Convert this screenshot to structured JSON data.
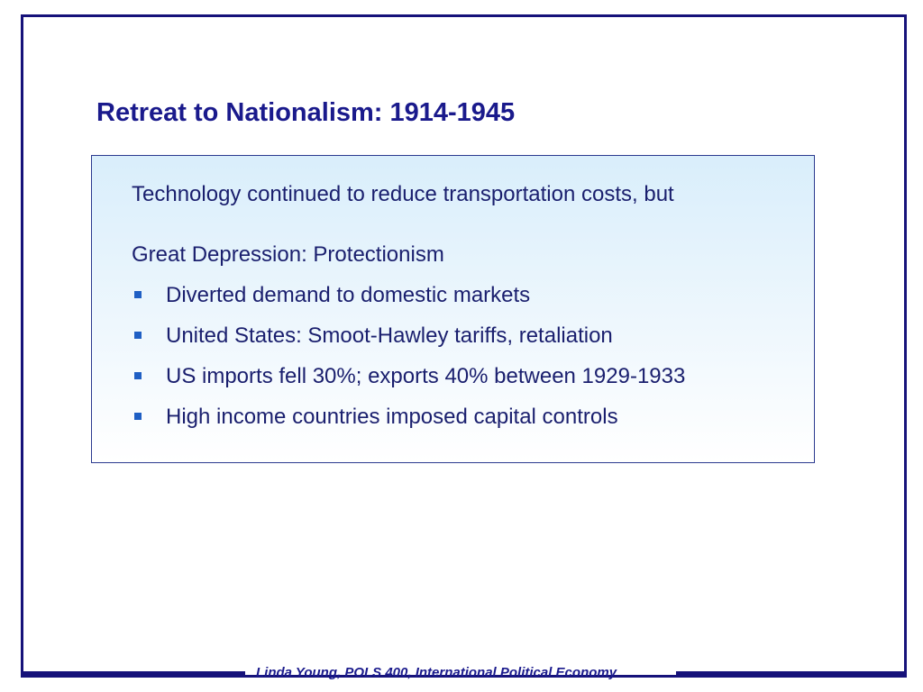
{
  "slide": {
    "title": "Retreat to Nationalism: 1914-1945",
    "intro": "Technology continued to reduce transportation costs, but",
    "section_heading": "Great Depression: Protectionism",
    "bullets": [
      "Diverted demand to domestic markets",
      "United States: Smoot-Hawley tariffs, retaliation",
      "US imports fell 30%; exports 40% between 1929-1933",
      "High income countries imposed capital controls"
    ],
    "footer": "Linda Young, POLS 400, International Political Economy"
  },
  "colors": {
    "frame": "#16127a",
    "title": "#1a1a8c",
    "body_text": "#1a1f6e",
    "bullet_marker": "#1f5fc4",
    "box_gradient_top": "#d9eefb"
  },
  "icons": {
    "bullet": "square-bullet-icon"
  }
}
